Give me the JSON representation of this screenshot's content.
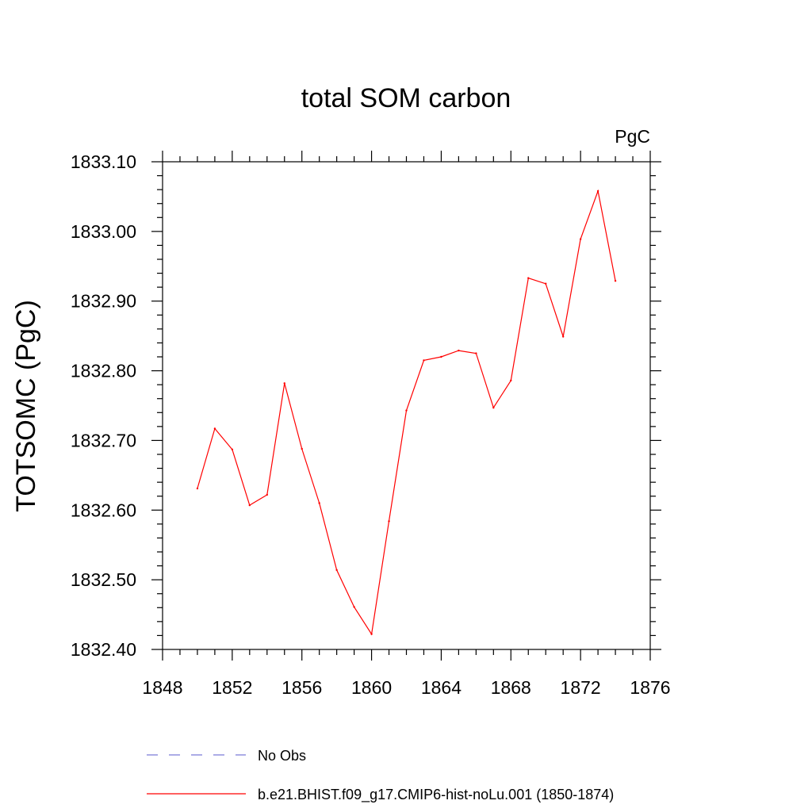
{
  "chart_data": {
    "type": "line",
    "title": "total SOM carbon",
    "units_label": "PgC",
    "ylabel": "TOTSOMC  (PgC)",
    "xlabel": "",
    "xlim": [
      1848,
      1876
    ],
    "ylim": [
      1832.4,
      1833.1
    ],
    "x_ticks": [
      "1848",
      "1852",
      "1856",
      "1860",
      "1864",
      "1868",
      "1872",
      "1876"
    ],
    "y_ticks": [
      "1832.40",
      "1832.50",
      "1832.60",
      "1832.70",
      "1832.80",
      "1832.90",
      "1833.00",
      "1833.10"
    ],
    "grid": false,
    "series": [
      {
        "name": "b.e21.BHIST.f09_g17.CMIP6-hist-noLu.001 (1850-1874)",
        "color": "#ff0000",
        "dash": "solid",
        "x": [
          1850,
          1851,
          1852,
          1853,
          1854,
          1855,
          1856,
          1857,
          1858,
          1859,
          1860,
          1861,
          1862,
          1863,
          1864,
          1865,
          1866,
          1867,
          1868,
          1869,
          1870,
          1871,
          1872,
          1873,
          1874
        ],
        "y": [
          1832.631,
          1832.717,
          1832.687,
          1832.607,
          1832.622,
          1832.782,
          1832.688,
          1832.61,
          1832.514,
          1832.461,
          1832.422,
          1832.584,
          1832.743,
          1832.815,
          1832.82,
          1832.829,
          1832.825,
          1832.747,
          1832.786,
          1832.933,
          1832.925,
          1832.849,
          1832.989,
          1833.058,
          1832.929
        ]
      }
    ],
    "legend": {
      "placement": "bottom",
      "entries": [
        {
          "label": "No Obs",
          "color": "#7b7bd6",
          "dash": "dashed"
        },
        {
          "label": "b.e21.BHIST.f09_g17.CMIP6-hist-noLu.001 (1850-1874)",
          "color": "#ff0000",
          "dash": "solid"
        }
      ]
    }
  }
}
